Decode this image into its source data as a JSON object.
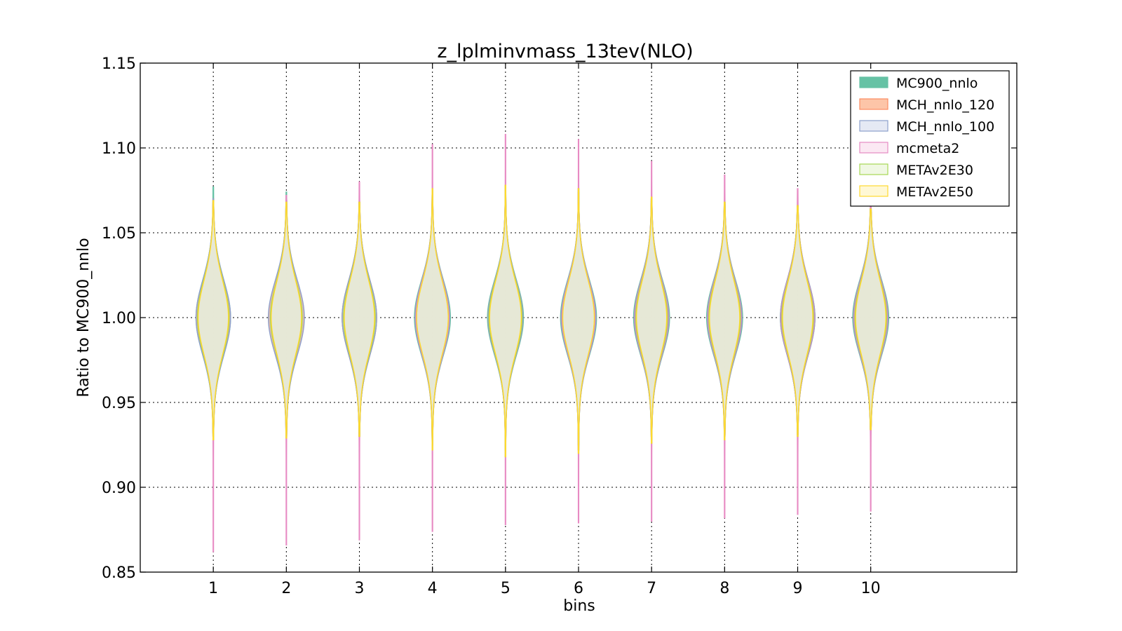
{
  "chart_data": {
    "type": "violin",
    "title": "z_lplminvmass_13tev(NLO)",
    "xlabel": "bins",
    "ylabel": "Ratio to MC900_nnlo",
    "xlim": [
      0,
      12
    ],
    "ylim": [
      0.85,
      1.15
    ],
    "grid": true,
    "legend_placement": "top-right",
    "categories": [
      "1",
      "2",
      "3",
      "4",
      "5",
      "6",
      "7",
      "8",
      "9",
      "10"
    ],
    "y_ticks": [
      "0.85",
      "0.90",
      "0.95",
      "1.00",
      "1.05",
      "1.10",
      "1.15"
    ],
    "series": [
      {
        "name": "MC900_nnlo",
        "color": "#66c2a5",
        "fill": "#66c2a5",
        "opacity": 0.95,
        "min": [
          0.932,
          0.93,
          0.931,
          0.927,
          0.924,
          0.925,
          0.93,
          0.931,
          0.933,
          0.936
        ],
        "max": [
          1.077,
          1.074,
          1.068,
          1.072,
          1.076,
          1.074,
          1.07,
          1.068,
          1.066,
          1.064
        ],
        "halfwidth": [
          0.24,
          0.24,
          0.24,
          0.25,
          0.25,
          0.25,
          0.25,
          0.25,
          0.24,
          0.25
        ]
      },
      {
        "name": "MCH_nnlo_120",
        "color": "#fc8d62",
        "fill": "#fdbf9f",
        "opacity": 0.45,
        "min": [
          0.93,
          0.929,
          0.93,
          0.925,
          0.922,
          0.922,
          0.928,
          0.93,
          0.931,
          0.934
        ],
        "max": [
          1.07,
          1.069,
          1.068,
          1.075,
          1.078,
          1.076,
          1.071,
          1.068,
          1.066,
          1.062
        ],
        "halfwidth": [
          0.23,
          0.24,
          0.24,
          0.24,
          0.24,
          0.24,
          0.24,
          0.24,
          0.24,
          0.24
        ]
      },
      {
        "name": "MCH_nnlo_100",
        "color": "#8da0cb",
        "fill": "#e2e7f3",
        "opacity": 0.45,
        "min": [
          0.93,
          0.929,
          0.93,
          0.925,
          0.922,
          0.922,
          0.928,
          0.93,
          0.931,
          0.934
        ],
        "max": [
          1.07,
          1.069,
          1.068,
          1.075,
          1.078,
          1.076,
          1.071,
          1.068,
          1.066,
          1.062
        ],
        "halfwidth": [
          0.24,
          0.25,
          0.24,
          0.24,
          0.24,
          0.24,
          0.24,
          0.24,
          0.24,
          0.24
        ]
      },
      {
        "name": "mcmeta2",
        "color": "#e78ac3",
        "fill": "#fbe6f2",
        "opacity": 0.3,
        "min": [
          0.862,
          0.866,
          0.869,
          0.874,
          0.878,
          0.879,
          0.88,
          0.882,
          0.884,
          0.886
        ],
        "max": [
          1.068,
          1.072,
          1.08,
          1.102,
          1.108,
          1.105,
          1.092,
          1.084,
          1.076,
          1.066
        ],
        "halfwidth": [
          0.22,
          0.22,
          0.22,
          0.23,
          0.23,
          0.23,
          0.23,
          0.23,
          0.23,
          0.23
        ]
      },
      {
        "name": "METAv2E30",
        "color": "#a6d854",
        "fill": "#eef7e0",
        "opacity": 0.3,
        "min": [
          0.928,
          0.929,
          0.93,
          0.922,
          0.918,
          0.92,
          0.926,
          0.928,
          0.93,
          0.934
        ],
        "max": [
          1.069,
          1.068,
          1.068,
          1.076,
          1.078,
          1.076,
          1.071,
          1.068,
          1.066,
          1.064
        ],
        "halfwidth": [
          0.22,
          0.22,
          0.22,
          0.22,
          0.23,
          0.22,
          0.22,
          0.22,
          0.22,
          0.22
        ]
      },
      {
        "name": "METAv2E50",
        "color": "#ffd92f",
        "fill": "#fff7d0",
        "opacity": 0.3,
        "min": [
          0.928,
          0.929,
          0.93,
          0.922,
          0.918,
          0.92,
          0.926,
          0.928,
          0.93,
          0.934
        ],
        "max": [
          1.069,
          1.068,
          1.068,
          1.076,
          1.078,
          1.076,
          1.071,
          1.068,
          1.066,
          1.064
        ],
        "halfwidth": [
          0.21,
          0.21,
          0.21,
          0.22,
          0.22,
          0.22,
          0.21,
          0.21,
          0.21,
          0.21
        ]
      }
    ]
  }
}
